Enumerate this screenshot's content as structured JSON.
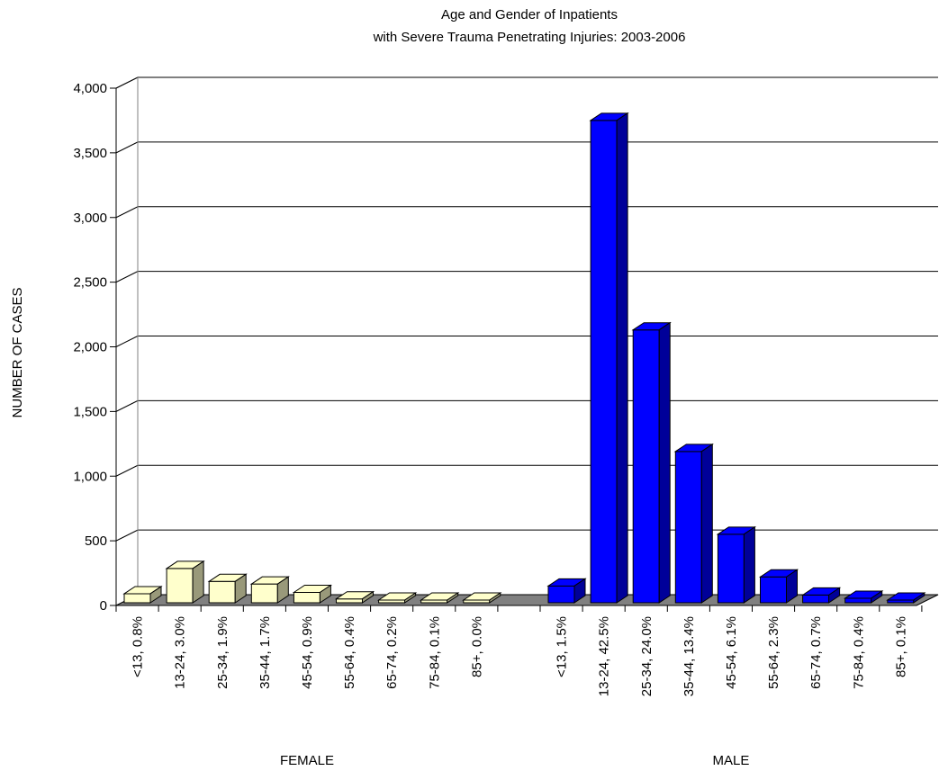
{
  "chart_data": {
    "type": "bar",
    "title_line1": "Age and Gender of Inpatients",
    "title_line2": "with Severe Trauma Penetrating Injuries: 2003-2006",
    "ylabel": "NUMBER OF CASES",
    "xlabel": "",
    "ylim": [
      0,
      4000
    ],
    "yticks": [
      "0",
      "500",
      "1,000",
      "1,500",
      "2,000",
      "2,500",
      "3,000",
      "3,500",
      "4,000"
    ],
    "grid": true,
    "legend": "none",
    "three_d": true,
    "groups": [
      {
        "name": "FEMALE",
        "color": "#ffffcc",
        "side_color": "#99997a",
        "categories": [
          "<13, 0.8%",
          "13-24, 3.0%",
          "25-34, 1.9%",
          "35-44, 1.7%",
          "45-54, 0.9%",
          "55-64, 0.4%",
          "65-74, 0.2%",
          "75-84, 0.1%",
          "85+, 0.0%"
        ],
        "values": [
          70,
          265,
          165,
          145,
          80,
          30,
          10,
          8,
          2
        ]
      },
      {
        "name": "MALE",
        "color": "#0000ff",
        "side_color": "#000099",
        "categories": [
          "<13, 1.5%",
          "13-24, 42.5%",
          "25-34, 24.0%",
          "35-44, 13.4%",
          "45-54, 6.1%",
          "55-64, 2.3%",
          "65-74, 0.7%",
          "75-84, 0.4%",
          "85+, 0.1%"
        ],
        "values": [
          130,
          3730,
          2110,
          1170,
          530,
          200,
          60,
          35,
          10
        ]
      }
    ]
  }
}
